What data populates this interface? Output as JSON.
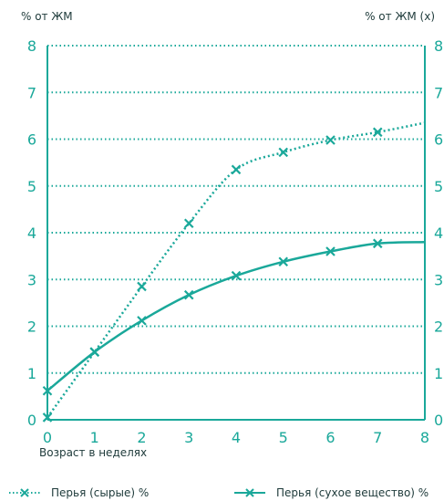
{
  "chart_data": {
    "type": "line",
    "ylabel_left": "% от ЖМ",
    "ylabel_right": "% от ЖМ (x)",
    "xlabel": "Возраст в неделях",
    "x_ticks": [
      "0",
      "1",
      "2",
      "3",
      "4",
      "5",
      "6",
      "7",
      "8"
    ],
    "y_ticks": [
      "0",
      "1",
      "2",
      "3",
      "4",
      "5",
      "6",
      "7",
      "8"
    ],
    "xlim": [
      0,
      8
    ],
    "ylim": [
      0,
      8
    ],
    "grid": "horizontal dotted",
    "legend_position": "bottom",
    "series": [
      {
        "name": "Перья (сырые) %",
        "style": "dotted",
        "axis": "right",
        "x": [
          0,
          1,
          2,
          3,
          4,
          5,
          6,
          7
        ],
        "y": [
          0.05,
          1.45,
          2.85,
          4.2,
          5.35,
          5.72,
          5.98,
          6.15
        ],
        "curve_end": [
          8,
          6.35
        ]
      },
      {
        "name": "Перья (сухое вещество) %",
        "style": "solid",
        "axis": "left",
        "x": [
          0,
          1,
          2,
          3,
          4,
          5,
          6,
          7
        ],
        "y": [
          0.62,
          1.45,
          2.12,
          2.67,
          3.08,
          3.38,
          3.6,
          3.77
        ],
        "curve_end": [
          8,
          3.8
        ]
      }
    ],
    "colors": {
      "line": "#1aa89a",
      "grid": "#1aa89a",
      "text": "#203c3c"
    }
  }
}
